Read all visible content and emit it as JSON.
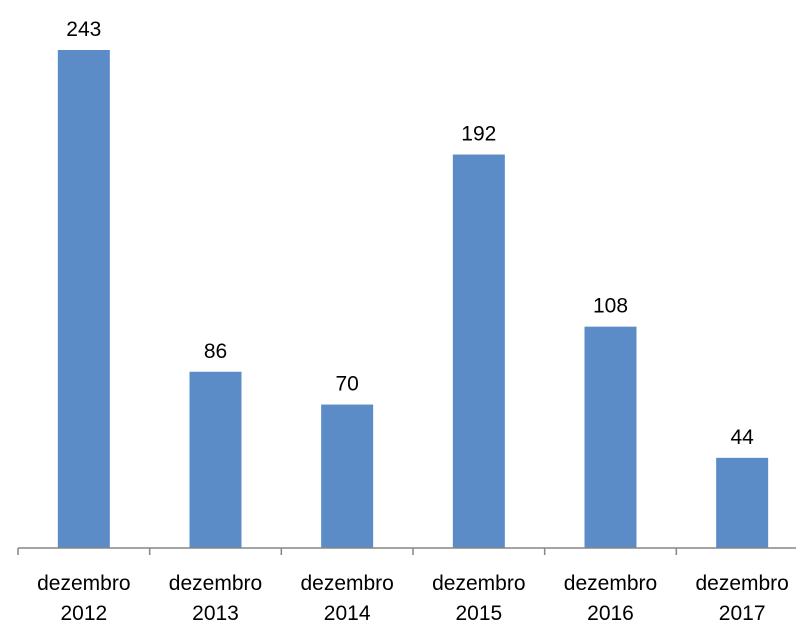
{
  "chart_data": {
    "type": "bar",
    "categories": [
      [
        "dezembro",
        "2012"
      ],
      [
        "dezembro",
        "2013"
      ],
      [
        "dezembro",
        "2014"
      ],
      [
        "dezembro",
        "2015"
      ],
      [
        "dezembro",
        "2016"
      ],
      [
        "dezembro",
        "2017"
      ]
    ],
    "values": [
      243,
      86,
      70,
      192,
      108,
      44
    ],
    "data_labels": [
      "243",
      "86",
      "70",
      "192",
      "108",
      "44"
    ],
    "title": "",
    "xlabel": "",
    "ylabel": "",
    "ylim": [
      0,
      243
    ],
    "grid": false,
    "legend": "none",
    "colors": {
      "bar": "#5B8CC8",
      "axis": "#868686",
      "text": "#000000"
    }
  }
}
